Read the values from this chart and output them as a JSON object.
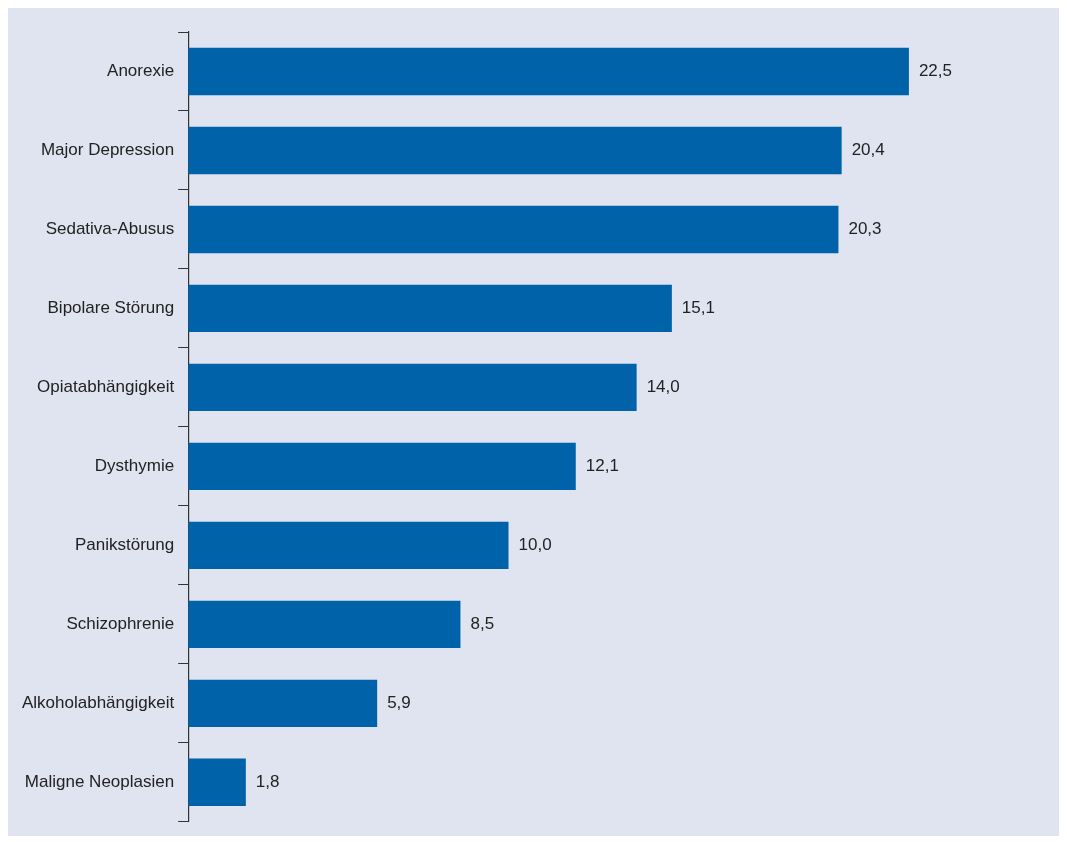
{
  "chart_data": {
    "type": "bar",
    "orientation": "horizontal",
    "categories": [
      "Anorexie",
      "Major Depression",
      "Sedativa-Abusus",
      "Bipolare Störung",
      "Opiatabhängigkeit",
      "Dysthymie",
      "Panikstörung",
      "Schizophrenie",
      "Alkoholabhängigkeit",
      "Maligne Neoplasien"
    ],
    "values": [
      22.5,
      20.4,
      20.3,
      15.1,
      14.0,
      12.1,
      10.0,
      8.5,
      5.9,
      1.8
    ],
    "value_labels": [
      "22,5",
      "20,4",
      "20,3",
      "15,1",
      "14,0",
      "12,1",
      "10,0",
      "8,5",
      "5,9",
      "1,8"
    ],
    "color": "#0062a8"
  }
}
